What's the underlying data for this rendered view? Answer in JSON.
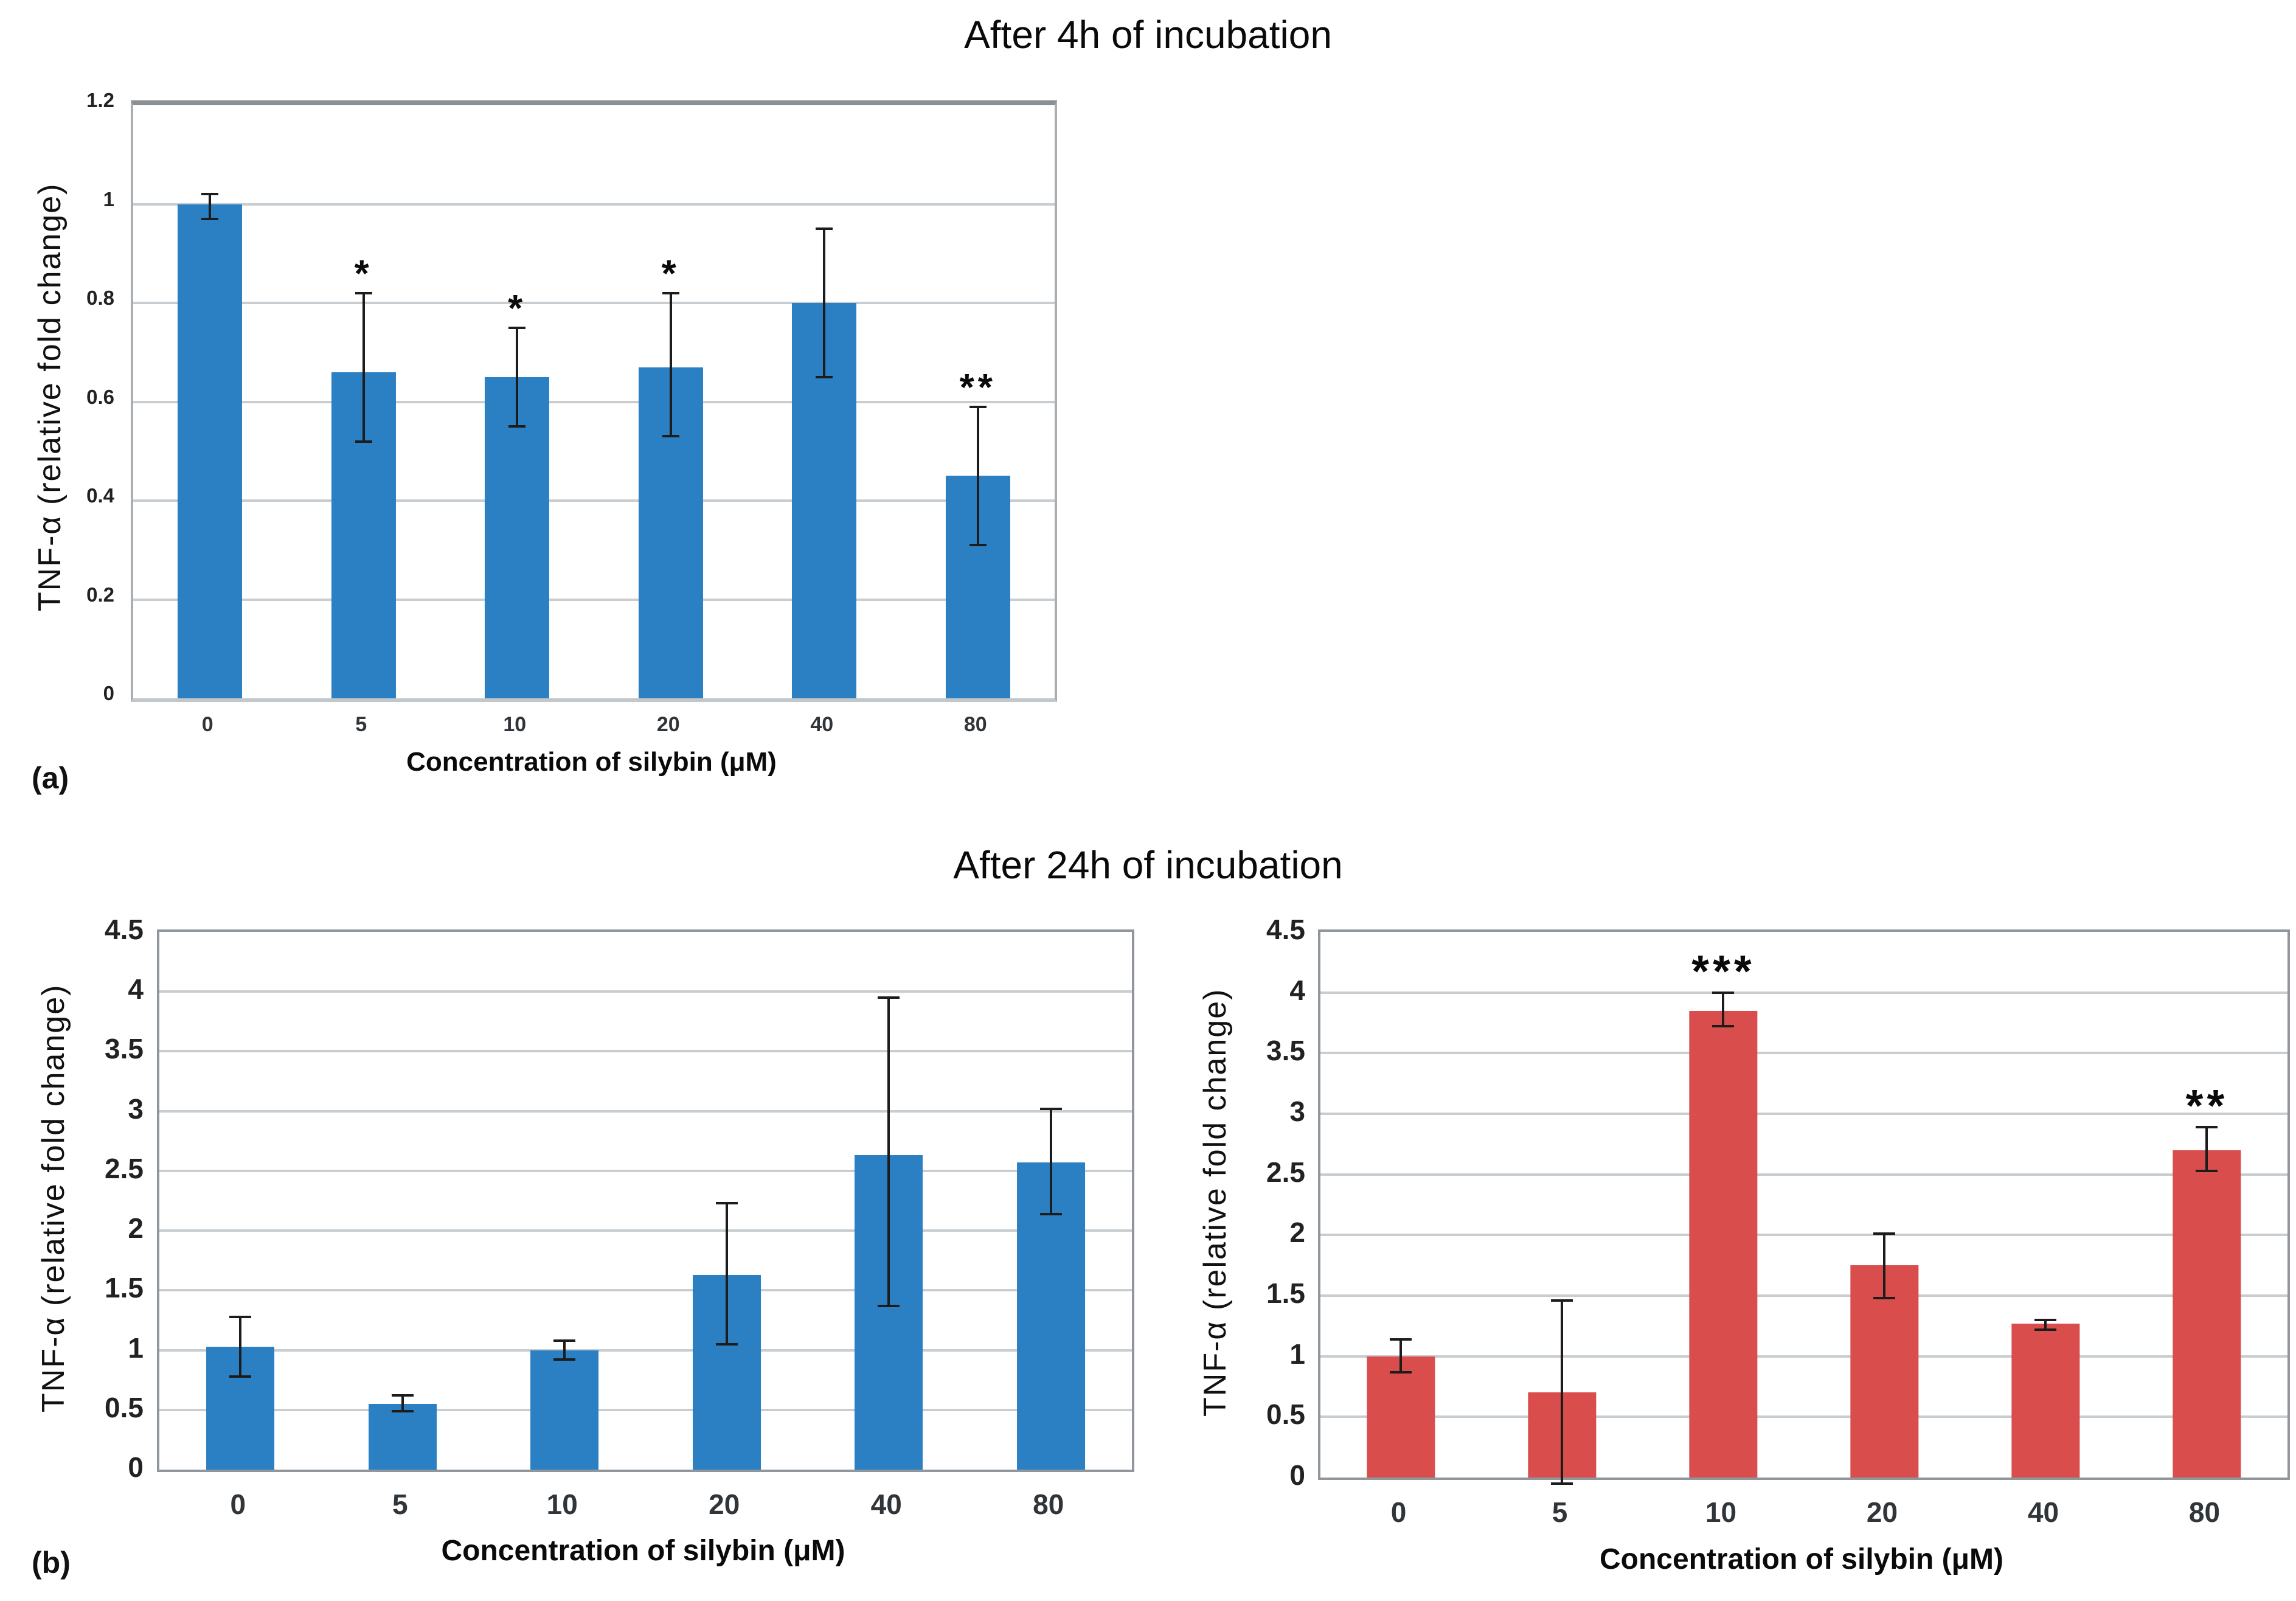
{
  "titles": {
    "panel_a": "After 4h of incubation",
    "panel_b": "After 24h of incubation"
  },
  "panel_labels": {
    "a": "(a)",
    "b": "(b)"
  },
  "colors": {
    "blue_bar": "#2b80c4",
    "red_bar": "#d94d4d",
    "gridline": "#c8cdd1",
    "error_bar": "#1c1c1c"
  },
  "chart_data": [
    {
      "type": "bar",
      "title": "After 4h of incubation",
      "panel": "(a)",
      "xlabel": "Concentration of silybin (μM)",
      "ylabel": "TNF-α (relative fold change)",
      "bar_color": "#2b80c4",
      "ylim": [
        0,
        1.2
      ],
      "grid": true,
      "legend": "none",
      "ytick_labels": [
        "1.2",
        "1",
        "0.8",
        "0.6",
        "0.4",
        "0.2",
        "0"
      ],
      "ytick_values": [
        1.2,
        1,
        0.8,
        0.6,
        0.4,
        0.2,
        0
      ],
      "categories": [
        "0",
        "5",
        "10",
        "20",
        "40",
        "80"
      ],
      "values": [
        1.0,
        0.66,
        0.65,
        0.67,
        0.8,
        0.45
      ],
      "error_low": [
        0.97,
        0.52,
        0.55,
        0.53,
        0.65,
        0.31
      ],
      "error_high": [
        1.02,
        0.82,
        0.75,
        0.82,
        0.95,
        0.59
      ],
      "significance": [
        "",
        "*",
        "*",
        "*",
        "",
        "**"
      ]
    },
    {
      "type": "bar",
      "title": "After 24h of incubation",
      "panel": "(b)",
      "xlabel": "Concentration of silybin (μM)",
      "ylabel": "TNF-α (relative fold change)",
      "bar_color": "#2b80c4",
      "ylim": [
        0,
        4.5
      ],
      "grid": true,
      "legend": "none",
      "ytick_labels": [
        "4.5",
        "4",
        "3.5",
        "3",
        "2.5",
        "2",
        "1.5",
        "1",
        "0.5",
        "0"
      ],
      "ytick_values": [
        4.5,
        4,
        3.5,
        3,
        2.5,
        2,
        1.5,
        1,
        0.5,
        0
      ],
      "categories": [
        "0",
        "5",
        "10",
        "20",
        "40",
        "80"
      ],
      "values": [
        1.03,
        0.55,
        1.0,
        1.63,
        2.63,
        2.57
      ],
      "error_low": [
        0.78,
        0.49,
        0.92,
        1.05,
        1.37,
        2.14
      ],
      "error_high": [
        1.28,
        0.62,
        1.08,
        2.23,
        3.95,
        3.02
      ],
      "significance": [
        "",
        "",
        "",
        "",
        "",
        ""
      ]
    },
    {
      "type": "bar",
      "title": "After 24h of incubation",
      "panel": "",
      "xlabel": "Concentration of silybin (μM)",
      "ylabel": "TNF-α (relative fold change)",
      "bar_color": "#d94d4d",
      "ylim": [
        0,
        4.5
      ],
      "grid": true,
      "legend": "none",
      "ytick_labels": [
        "4.5",
        "4",
        "3.5",
        "3",
        "2.5",
        "2",
        "1.5",
        "1",
        "0.5",
        "0"
      ],
      "ytick_values": [
        4.5,
        4,
        3.5,
        3,
        2.5,
        2,
        1.5,
        1,
        0.5,
        0
      ],
      "categories": [
        "0",
        "5",
        "10",
        "20",
        "40",
        "80"
      ],
      "values": [
        1.0,
        0.7,
        3.85,
        1.75,
        1.27,
        2.7
      ],
      "error_low": [
        0.87,
        -0.05,
        3.72,
        1.48,
        1.22,
        2.53
      ],
      "error_high": [
        1.14,
        1.46,
        4.0,
        2.01,
        1.3,
        2.89
      ],
      "significance": [
        "",
        "",
        "***",
        "",
        "",
        "**"
      ]
    }
  ]
}
